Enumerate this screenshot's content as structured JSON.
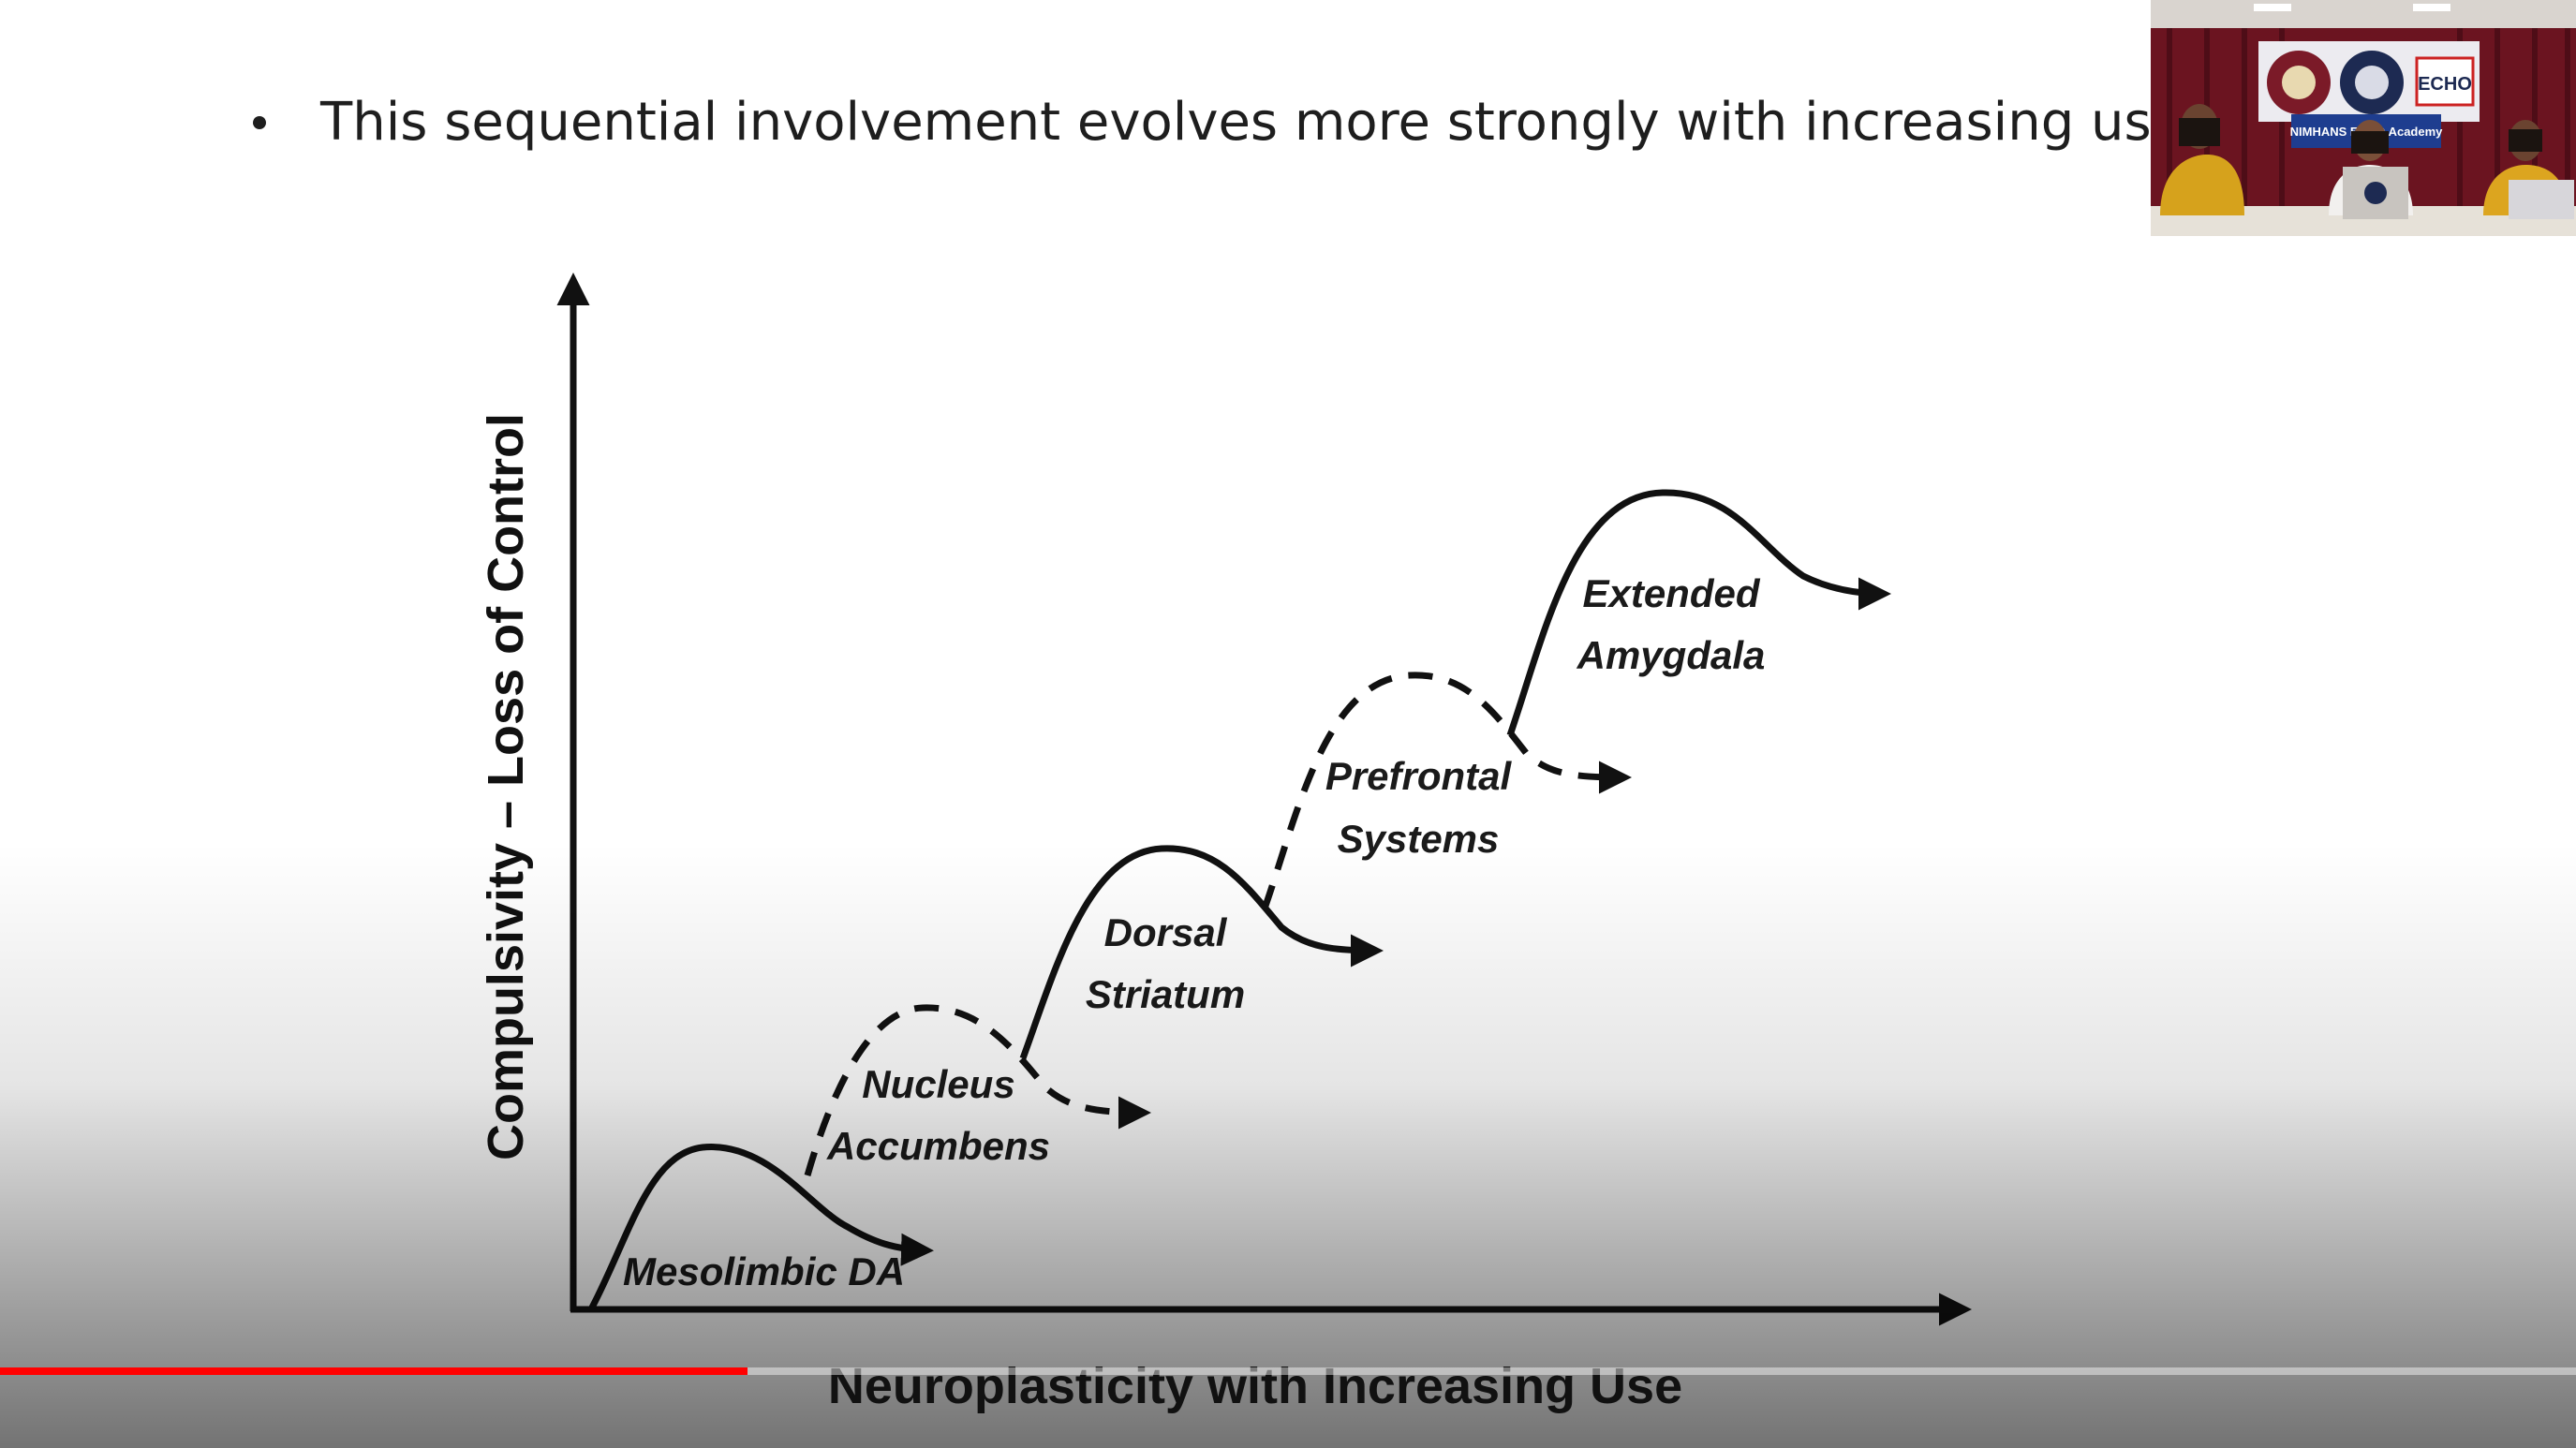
{
  "slide": {
    "bullet_text": "This sequential involvement evolves more strongly with increasing use"
  },
  "diagram": {
    "y_axis_title": "Compulsivity – Loss of Control",
    "x_axis_title": "Neuroplasticity with Increasing Use",
    "stages": [
      {
        "line1": "Mesolimbic DA",
        "line2": "",
        "style": "solid"
      },
      {
        "line1": "Nucleus",
        "line2": "Accumbens",
        "style": "dashed"
      },
      {
        "line1": "Dorsal",
        "line2": "Striatum",
        "style": "solid"
      },
      {
        "line1": "Prefrontal",
        "line2": "Systems",
        "style": "dashed"
      },
      {
        "line1": "Extended",
        "line2": "Amygdala",
        "style": "solid"
      }
    ]
  },
  "webcam": {
    "banner_text": "NIMHANS ECHO Academy",
    "logo_text": "ECHO"
  },
  "player": {
    "progress_fraction": 0.29,
    "accent_color": "#ff0000"
  },
  "colors": {
    "slide_background": "#ffffff",
    "text": "#1e1e1e",
    "curtain": "#6b1420"
  }
}
